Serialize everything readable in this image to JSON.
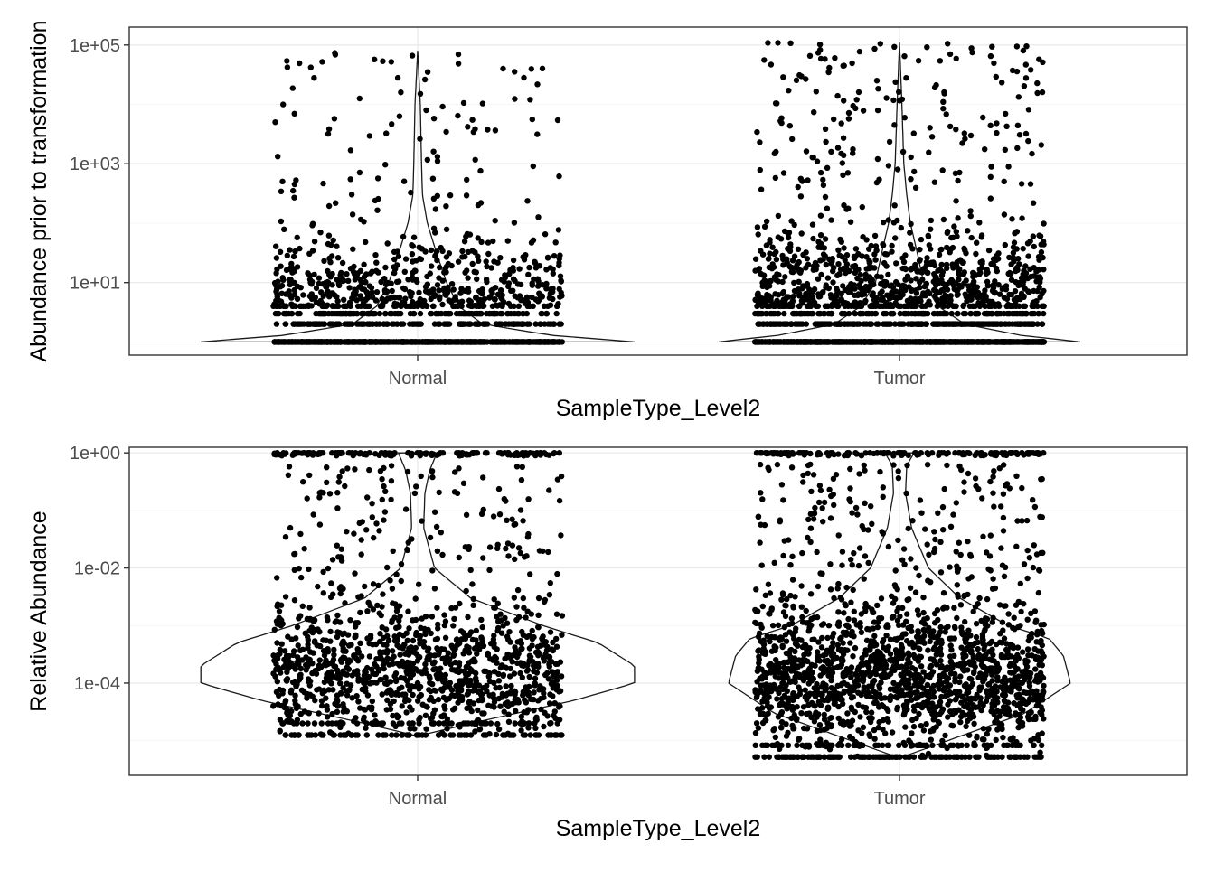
{
  "chart_data": [
    {
      "type": "violin-jitter",
      "title": "",
      "xlabel": "SampleType_Level2",
      "ylabel": "Abundance prior to transformation",
      "y_scale": "log10",
      "ylim": [
        0.6,
        200000
      ],
      "y_ticks": [
        {
          "value": 10,
          "label": "1e+01"
        },
        {
          "value": 1000,
          "label": "1e+03"
        },
        {
          "value": 100000,
          "label": "1e+05"
        }
      ],
      "categories": [
        "Normal",
        "Tumor"
      ],
      "grid": true,
      "point_color": "#000000",
      "violin_color": "#1a1a1a",
      "violins": [
        {
          "category": "Normal",
          "min": 1,
          "max": 80000,
          "profile": [
            [
              1,
              0.9
            ],
            [
              1.3,
              0.55
            ],
            [
              2,
              0.27
            ],
            [
              4,
              0.17
            ],
            [
              10,
              0.12
            ],
            [
              30,
              0.08
            ],
            [
              100,
              0.04
            ],
            [
              300,
              0.02
            ],
            [
              1000,
              0.016
            ],
            [
              10000,
              0.011
            ],
            [
              80000,
              0.0
            ]
          ]
        },
        {
          "category": "Tumor",
          "min": 1,
          "max": 110000,
          "profile": [
            [
              1,
              0.75
            ],
            [
              1.3,
              0.5
            ],
            [
              2,
              0.27
            ],
            [
              4,
              0.16
            ],
            [
              10,
              0.1
            ],
            [
              30,
              0.075
            ],
            [
              100,
              0.045
            ],
            [
              300,
              0.03
            ],
            [
              1000,
              0.018
            ],
            [
              10000,
              0.01
            ],
            [
              110000,
              0.0
            ]
          ]
        }
      ],
      "points_summary": [
        {
          "category": "Normal",
          "n_approx": 1500,
          "min": 1,
          "max": 80000,
          "jitter_halfwidth": 0.3
        },
        {
          "category": "Tumor",
          "n_approx": 2100,
          "min": 1,
          "max": 110000,
          "jitter_halfwidth": 0.3
        }
      ]
    },
    {
      "type": "violin-jitter",
      "title": "",
      "xlabel": "SampleType_Level2",
      "ylabel": "Relative Abundance",
      "y_scale": "log10",
      "ylim": [
        2.5e-06,
        1.25
      ],
      "y_ticks": [
        {
          "value": 0.0001,
          "label": "1e-04"
        },
        {
          "value": 0.01,
          "label": "1e-02"
        },
        {
          "value": 1,
          "label": "1e+00"
        }
      ],
      "categories": [
        "Normal",
        "Tumor"
      ],
      "grid": true,
      "point_color": "#000000",
      "violin_color": "#1a1a1a",
      "violins": [
        {
          "category": "Normal",
          "min": 1.2e-05,
          "max": 1,
          "profile": [
            [
              1.2e-05,
              0.0
            ],
            [
              2e-05,
              0.22
            ],
            [
              5e-05,
              0.65
            ],
            [
              0.0001,
              0.9
            ],
            [
              0.0002,
              0.9
            ],
            [
              0.0005,
              0.75
            ],
            [
              0.001,
              0.52
            ],
            [
              0.003,
              0.22
            ],
            [
              0.01,
              0.07
            ],
            [
              0.05,
              0.025
            ],
            [
              0.2,
              0.03
            ],
            [
              0.5,
              0.05
            ],
            [
              1,
              0.08
            ]
          ]
        },
        {
          "category": "Tumor",
          "min": 5e-06,
          "max": 1,
          "profile": [
            [
              5e-06,
              0.0
            ],
            [
              1e-05,
              0.2
            ],
            [
              3e-05,
              0.52
            ],
            [
              0.0001,
              0.71
            ],
            [
              0.0003,
              0.68
            ],
            [
              0.0006,
              0.62
            ],
            [
              0.001,
              0.45
            ],
            [
              0.003,
              0.25
            ],
            [
              0.01,
              0.12
            ],
            [
              0.05,
              0.05
            ],
            [
              0.2,
              0.025
            ],
            [
              0.6,
              0.03
            ],
            [
              1,
              0.06
            ]
          ]
        }
      ],
      "points_summary": [
        {
          "category": "Normal",
          "n_approx": 1500,
          "min": 1.2e-05,
          "max": 1,
          "jitter_halfwidth": 0.3
        },
        {
          "category": "Tumor",
          "n_approx": 2100,
          "min": 5e-06,
          "max": 1,
          "jitter_halfwidth": 0.3
        }
      ]
    }
  ]
}
